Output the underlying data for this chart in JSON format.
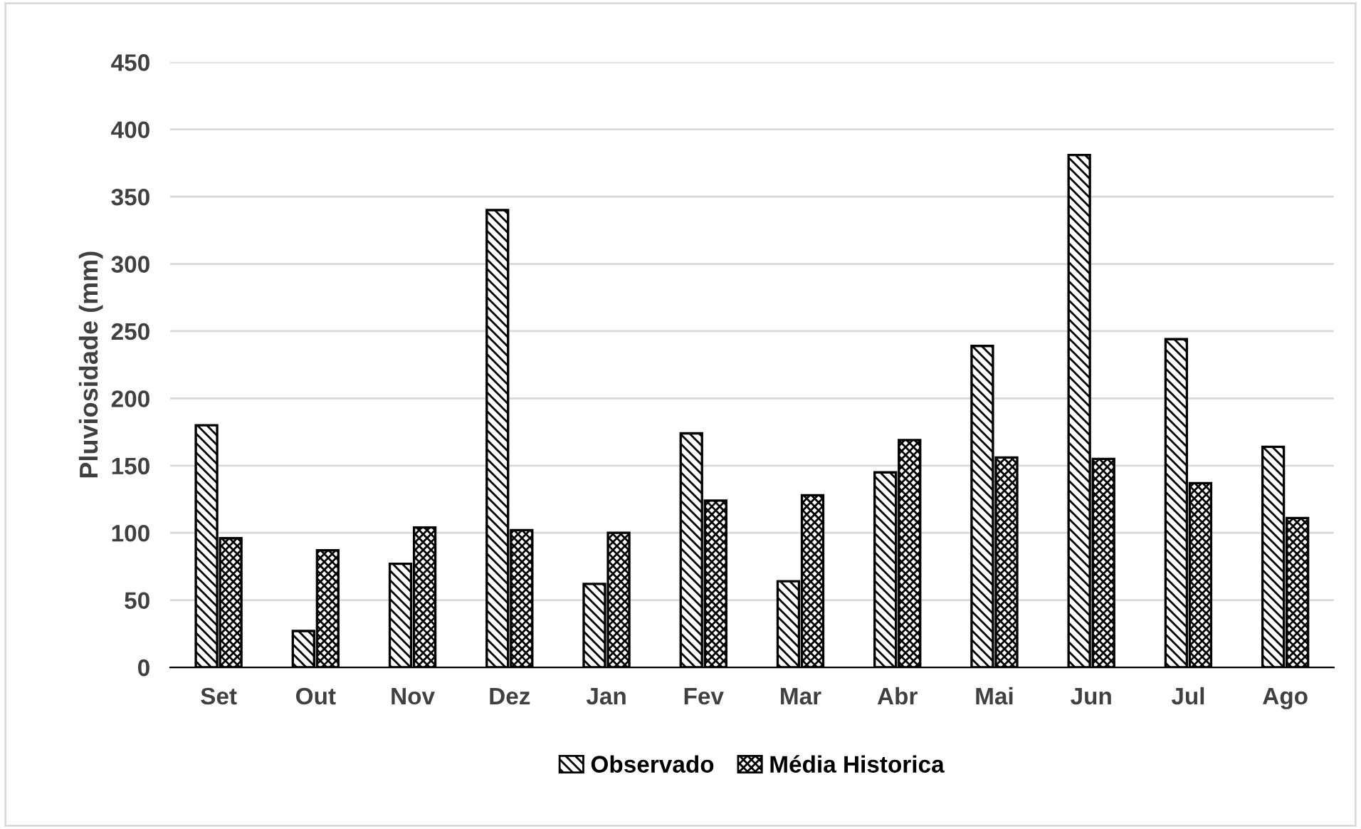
{
  "chart_data": {
    "type": "bar",
    "ylabel": "Pluviosidade (mm)",
    "categories": [
      "Set",
      "Out",
      "Nov",
      "Dez",
      "Jan",
      "Fev",
      "Mar",
      "Abr",
      "Mai",
      "Jun",
      "Jul",
      "Ago"
    ],
    "series": [
      {
        "name": "Observado",
        "color": "#000000",
        "values": [
          180,
          27,
          77,
          340,
          62,
          174,
          64,
          145,
          239,
          381,
          244,
          164
        ]
      },
      {
        "name": "Média Historica",
        "color": "#000000",
        "values": [
          96,
          87,
          104,
          102,
          100,
          124,
          128,
          169,
          156,
          155,
          137,
          111
        ]
      }
    ],
    "ylim": [
      0,
      450
    ],
    "yticks": [
      0,
      50,
      100,
      150,
      200,
      250,
      300,
      350,
      400,
      450
    ],
    "grid": "y",
    "legend": "bottom"
  }
}
